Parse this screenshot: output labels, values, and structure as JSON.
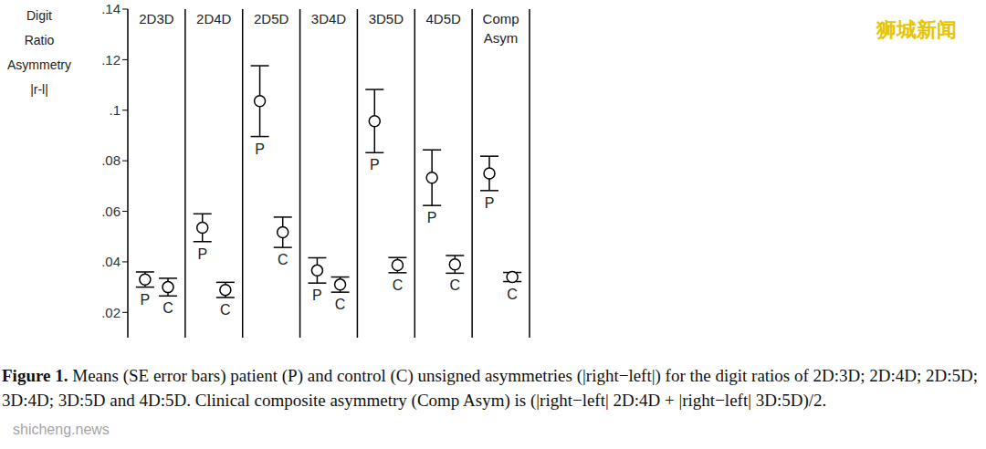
{
  "chart_data": {
    "type": "scatter",
    "y_label": "Digit Ratio Asymmetry |r-l|",
    "categories": [
      "2D3D",
      "2D4D",
      "2D5D",
      "3D4D",
      "3D5D",
      "4D5D",
      "Comp Asym"
    ],
    "series": [
      {
        "name": "P",
        "color": "#000000",
        "marker": "open_circle",
        "values": [
          0.033,
          0.0535,
          0.1036,
          0.0366,
          0.0957,
          0.0733,
          0.075
        ],
        "se": [
          0.003,
          0.0055,
          0.014,
          0.005,
          0.0125,
          0.011,
          0.0068
        ]
      },
      {
        "name": "C",
        "color": "#000000",
        "marker": "open_circle",
        "values": [
          0.03,
          0.0289,
          0.0517,
          0.031,
          0.0387,
          0.039,
          0.034
        ],
        "se": [
          0.0035,
          0.003,
          0.006,
          0.003,
          0.003,
          0.0035,
          0.0018
        ]
      }
    ],
    "ylim": [
      0.01,
      0.14
    ],
    "yticks": [
      {
        "value": 0.02,
        "label": ".02"
      },
      {
        "value": 0.04,
        "label": ".04"
      },
      {
        "value": 0.06,
        "label": ".06"
      },
      {
        "value": 0.08,
        "label": ".08"
      },
      {
        "value": 0.1,
        "label": ".1"
      },
      {
        "value": 0.12,
        "label": ".12"
      },
      {
        "value": 0.14,
        "label": ".14"
      }
    ],
    "grid": false,
    "tick_labels": "y"
  },
  "caption": {
    "label": "Figure 1.",
    "text": "Means (SE error bars) patient (P) and control (C) unsigned asymmetries (|right−left|) for the digit ratios of 2D:3D; 2D:4D; 2D:5D; 3D:4D; 3D:5D and 4D:5D. Clinical composite asymmetry (Comp Asym) is (|right−left| 2D:4D + |right−left| 3D:5D)/2."
  },
  "watermarks": [
    "狮城新闻",
    "shicheng.news"
  ]
}
